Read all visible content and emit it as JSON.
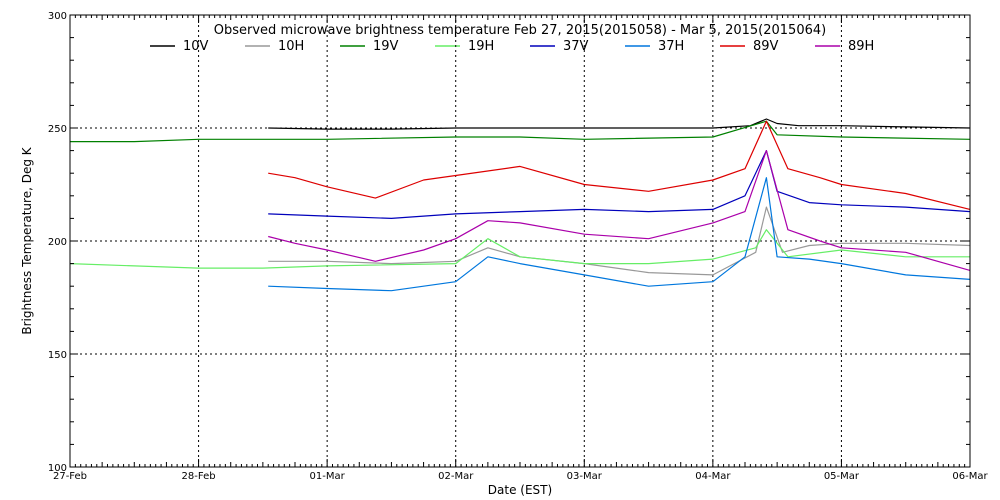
{
  "chart_data": {
    "type": "line",
    "title": "Observed microwave brightness temperature Feb 27, 2015(2015058) - Mar  5, 2015(2015064)",
    "xlabel": "Date (EST)",
    "ylabel": "Brightness Temperature, Deg K",
    "xlim": [
      "2015-02-27T00:00",
      "2015-03-06T00:00"
    ],
    "ylim": [
      100,
      300
    ],
    "x_tick_labels": [
      "27-Feb",
      "28-Feb",
      "01-Mar",
      "02-Mar",
      "03-Mar",
      "04-Mar",
      "05-Mar",
      "06-Mar"
    ],
    "y_tick_labels": [
      "100",
      "150",
      "200",
      "250",
      "300"
    ],
    "y_ticks": [
      100,
      150,
      200,
      250,
      300
    ],
    "grid": true,
    "legend_position": "top",
    "series": [
      {
        "name": "10V",
        "color": "#000000",
        "x": [
          "2015-02-28T13:00",
          "2015-03-01T00:00",
          "2015-03-01T12:00",
          "2015-03-02T00:00",
          "2015-03-02T12:00",
          "2015-03-03T00:00",
          "2015-03-03T12:00",
          "2015-03-04T00:00",
          "2015-03-04T07:00",
          "2015-03-04T10:00",
          "2015-03-04T12:00",
          "2015-03-04T16:00",
          "2015-03-05T00:00",
          "2015-03-05T12:00",
          "2015-03-06T00:00"
        ],
        "y": [
          250,
          249.5,
          249.5,
          250,
          250,
          250,
          250,
          250,
          251,
          254,
          252,
          251,
          251,
          250.5,
          250
        ]
      },
      {
        "name": "10H",
        "color": "#999999",
        "x": [
          "2015-02-28T13:00",
          "2015-03-01T00:00",
          "2015-03-01T12:00",
          "2015-03-02T00:00",
          "2015-03-02T06:00",
          "2015-03-02T12:00",
          "2015-03-03T00:00",
          "2015-03-03T12:00",
          "2015-03-04T00:00",
          "2015-03-04T08:00",
          "2015-03-04T10:00",
          "2015-03-04T13:00",
          "2015-03-04T18:00",
          "2015-03-05T00:00",
          "2015-03-05T12:00",
          "2015-03-06T00:00"
        ],
        "y": [
          191,
          191,
          190,
          191,
          197,
          193,
          190,
          186,
          185,
          195,
          215,
          195,
          198,
          199,
          199,
          198
        ]
      },
      {
        "name": "19V",
        "color": "#008000",
        "x": [
          "2015-02-27T00:00",
          "2015-02-27T12:00",
          "2015-02-28T00:00",
          "2015-02-28T12:00",
          "2015-03-01T00:00",
          "2015-03-02T00:00",
          "2015-03-02T12:00",
          "2015-03-03T00:00",
          "2015-03-04T00:00",
          "2015-03-04T10:00",
          "2015-03-04T12:00",
          "2015-03-05T00:00",
          "2015-03-06T00:00"
        ],
        "y": [
          244,
          244,
          245,
          245,
          245,
          246,
          246,
          245,
          246,
          253,
          247,
          246,
          245
        ]
      },
      {
        "name": "19H",
        "color": "#66ee66",
        "x": [
          "2015-02-27T00:00",
          "2015-02-27T12:00",
          "2015-02-28T00:00",
          "2015-02-28T12:00",
          "2015-03-01T00:00",
          "2015-03-02T00:00",
          "2015-03-02T06:00",
          "2015-03-02T12:00",
          "2015-03-03T00:00",
          "2015-03-03T12:00",
          "2015-03-04T00:00",
          "2015-03-04T08:00",
          "2015-03-04T10:00",
          "2015-03-04T14:00",
          "2015-03-05T00:00",
          "2015-03-05T12:00",
          "2015-03-06T00:00"
        ],
        "y": [
          190,
          189,
          188,
          188,
          189,
          190,
          201,
          193,
          190,
          190,
          192,
          197,
          205,
          193,
          196,
          193,
          193
        ]
      },
      {
        "name": "37V",
        "color": "#0000bb",
        "x": [
          "2015-02-28T13:00",
          "2015-03-01T00:00",
          "2015-03-01T12:00",
          "2015-03-02T00:00",
          "2015-03-02T12:00",
          "2015-03-03T00:00",
          "2015-03-03T12:00",
          "2015-03-04T00:00",
          "2015-03-04T06:00",
          "2015-03-04T10:00",
          "2015-03-04T12:00",
          "2015-03-04T18:00",
          "2015-03-05T00:00",
          "2015-03-05T12:00",
          "2015-03-06T00:00"
        ],
        "y": [
          212,
          211,
          210,
          212,
          213,
          214,
          213,
          214,
          220,
          240,
          222,
          217,
          216,
          215,
          213
        ]
      },
      {
        "name": "37H",
        "color": "#0077dd",
        "x": [
          "2015-02-28T13:00",
          "2015-03-01T00:00",
          "2015-03-01T12:00",
          "2015-03-02T00:00",
          "2015-03-02T06:00",
          "2015-03-02T12:00",
          "2015-03-03T00:00",
          "2015-03-03T12:00",
          "2015-03-04T00:00",
          "2015-03-04T06:00",
          "2015-03-04T10:00",
          "2015-03-04T12:00",
          "2015-03-04T18:00",
          "2015-03-05T00:00",
          "2015-03-05T12:00",
          "2015-03-06T00:00"
        ],
        "y": [
          180,
          179,
          178,
          182,
          193,
          190,
          185,
          180,
          182,
          193,
          228,
          193,
          192,
          190,
          185,
          183
        ]
      },
      {
        "name": "89V",
        "color": "#dd0000",
        "x": [
          "2015-02-28T13:00",
          "2015-02-28T18:00",
          "2015-03-01T00:00",
          "2015-03-01T09:00",
          "2015-03-01T18:00",
          "2015-03-02T00:00",
          "2015-03-02T12:00",
          "2015-03-03T00:00",
          "2015-03-03T12:00",
          "2015-03-04T00:00",
          "2015-03-04T06:00",
          "2015-03-04T10:00",
          "2015-03-04T14:00",
          "2015-03-04T20:00",
          "2015-03-05T00:00",
          "2015-03-05T12:00",
          "2015-03-06T00:00"
        ],
        "y": [
          230,
          228,
          224,
          219,
          227,
          229,
          233,
          225,
          222,
          227,
          232,
          253,
          232,
          228,
          225,
          221,
          214
        ]
      },
      {
        "name": "89H",
        "color": "#aa00aa",
        "x": [
          "2015-02-28T13:00",
          "2015-02-28T18:00",
          "2015-03-01T00:00",
          "2015-03-01T09:00",
          "2015-03-01T18:00",
          "2015-03-02T00:00",
          "2015-03-02T06:00",
          "2015-03-02T12:00",
          "2015-03-03T00:00",
          "2015-03-03T12:00",
          "2015-03-04T00:00",
          "2015-03-04T06:00",
          "2015-03-04T10:00",
          "2015-03-04T14:00",
          "2015-03-04T20:00",
          "2015-03-05T00:00",
          "2015-03-05T12:00",
          "2015-03-06T00:00"
        ],
        "y": [
          202,
          199,
          196,
          191,
          196,
          201,
          209,
          208,
          203,
          201,
          208,
          213,
          240,
          205,
          200,
          197,
          195,
          187
        ]
      }
    ]
  }
}
